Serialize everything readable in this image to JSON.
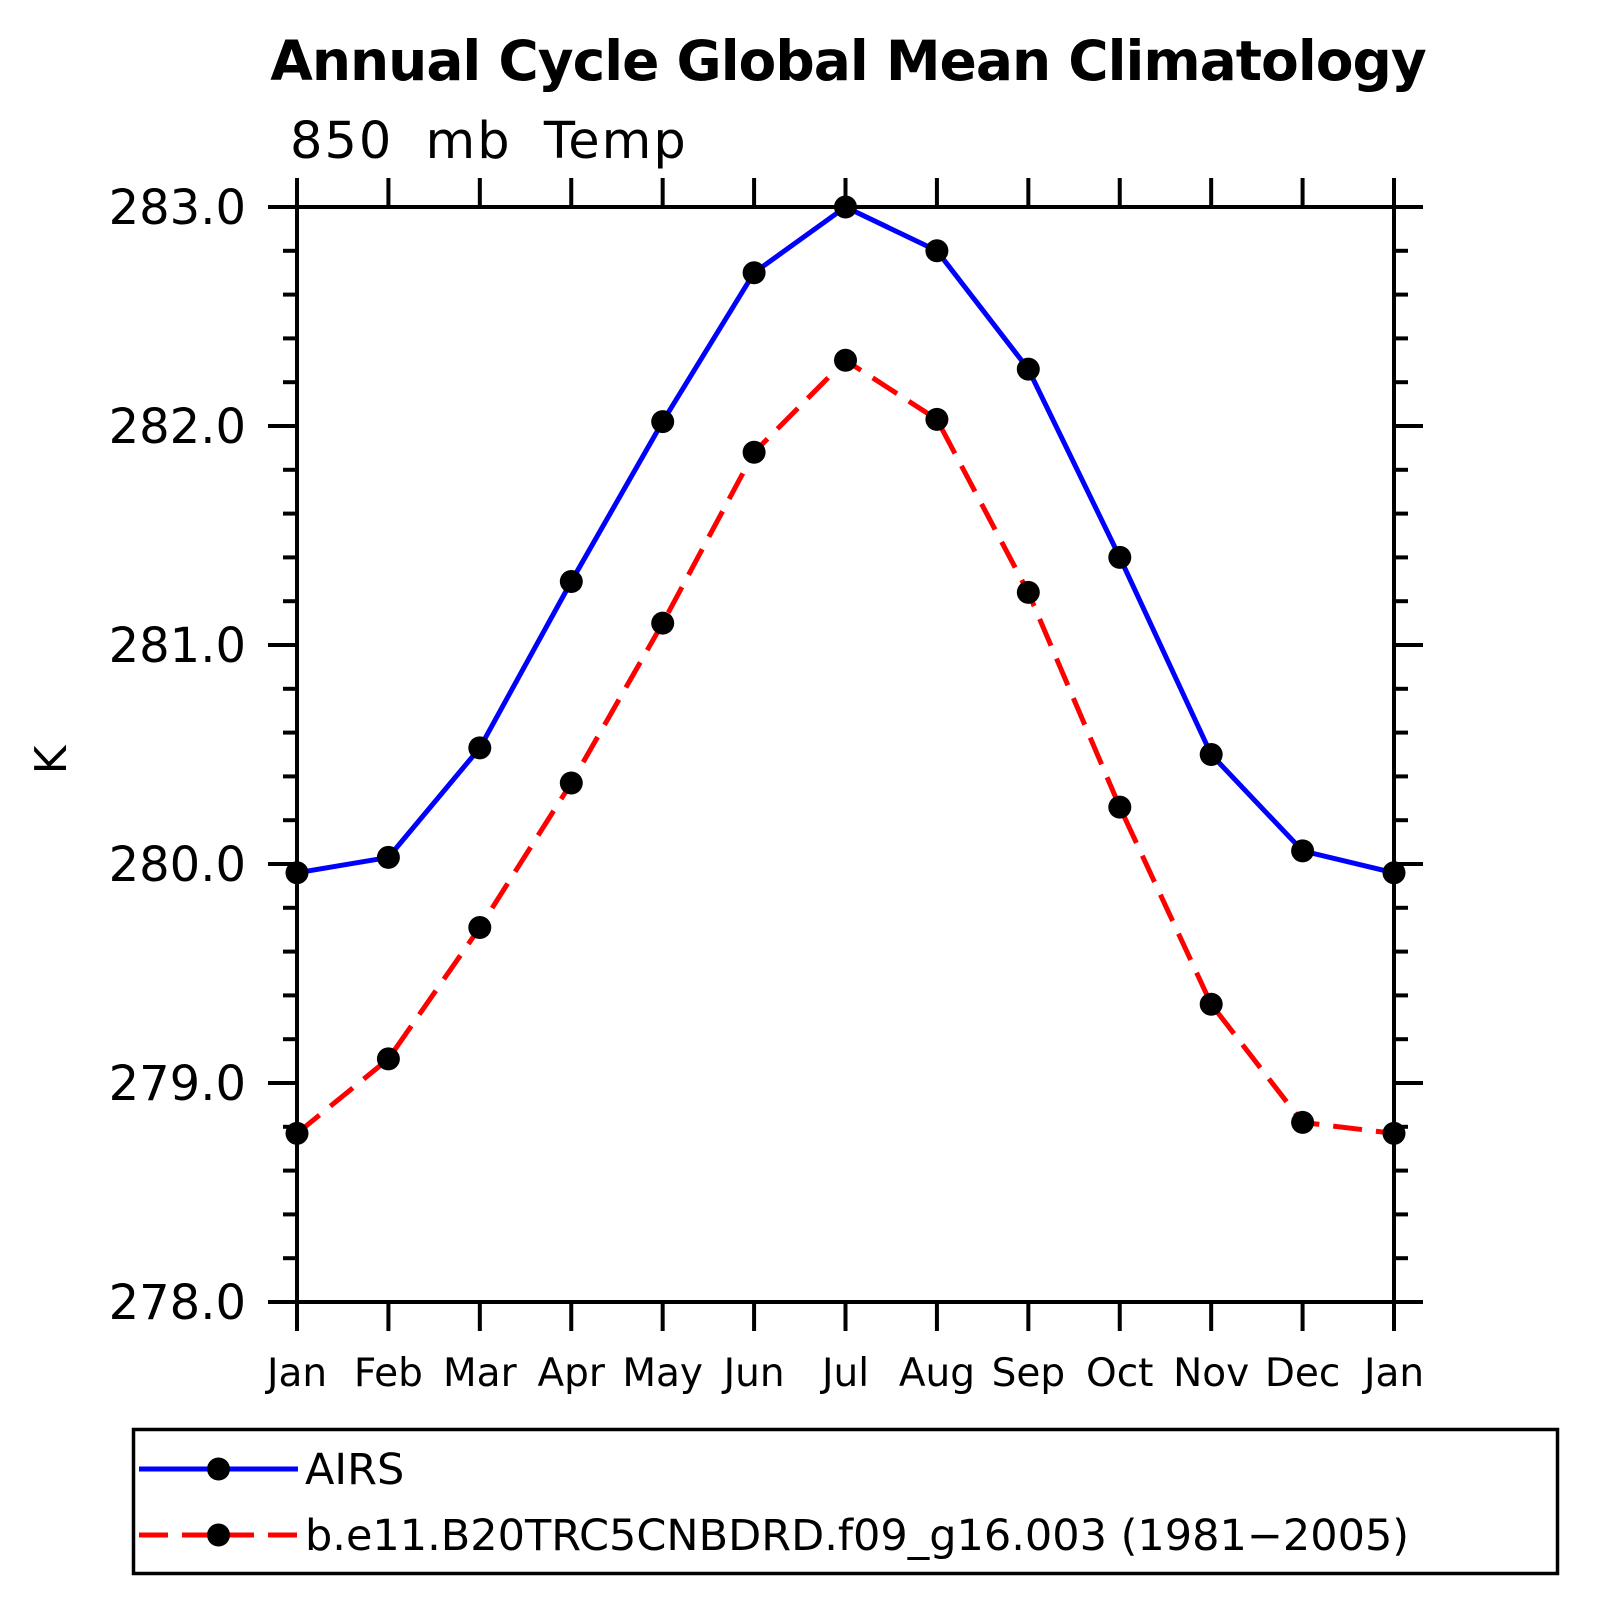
{
  "chart_data": {
    "type": "line",
    "title": "Annual Cycle Global Mean Climatology",
    "subtitle": "850 mb Temp",
    "xlabel": "",
    "ylabel": "K",
    "categories": [
      "Jan",
      "Feb",
      "Mar",
      "Apr",
      "May",
      "Jun",
      "Jul",
      "Aug",
      "Sep",
      "Oct",
      "Nov",
      "Dec",
      "Jan"
    ],
    "ylim": [
      278.0,
      283.0
    ],
    "ytick_step": 1.0,
    "ytick_minor_step": 0.2,
    "ytick_labels": [
      "278.0",
      "279.0",
      "280.0",
      "281.0",
      "282.0",
      "283.0"
    ],
    "grid": false,
    "legend_position": "bottom",
    "axis_color": "#000000",
    "marker_color": "#000000",
    "series": [
      {
        "name": "AIRS",
        "color": "#0000ff",
        "line_style": "solid",
        "marker": "circle",
        "values": [
          279.96,
          280.03,
          280.53,
          281.29,
          282.02,
          282.7,
          283.0,
          282.8,
          282.26,
          281.4,
          280.5,
          280.06,
          279.96
        ]
      },
      {
        "name": "b.e11.B20TRC5CNBDRD.f09_g16.003 (1981−2005)",
        "color": "#ff0000",
        "line_style": "dashed",
        "marker": "circle",
        "values": [
          278.77,
          279.11,
          279.71,
          280.37,
          281.1,
          281.88,
          282.3,
          282.03,
          281.24,
          280.26,
          279.36,
          278.82,
          278.77
        ]
      }
    ]
  }
}
